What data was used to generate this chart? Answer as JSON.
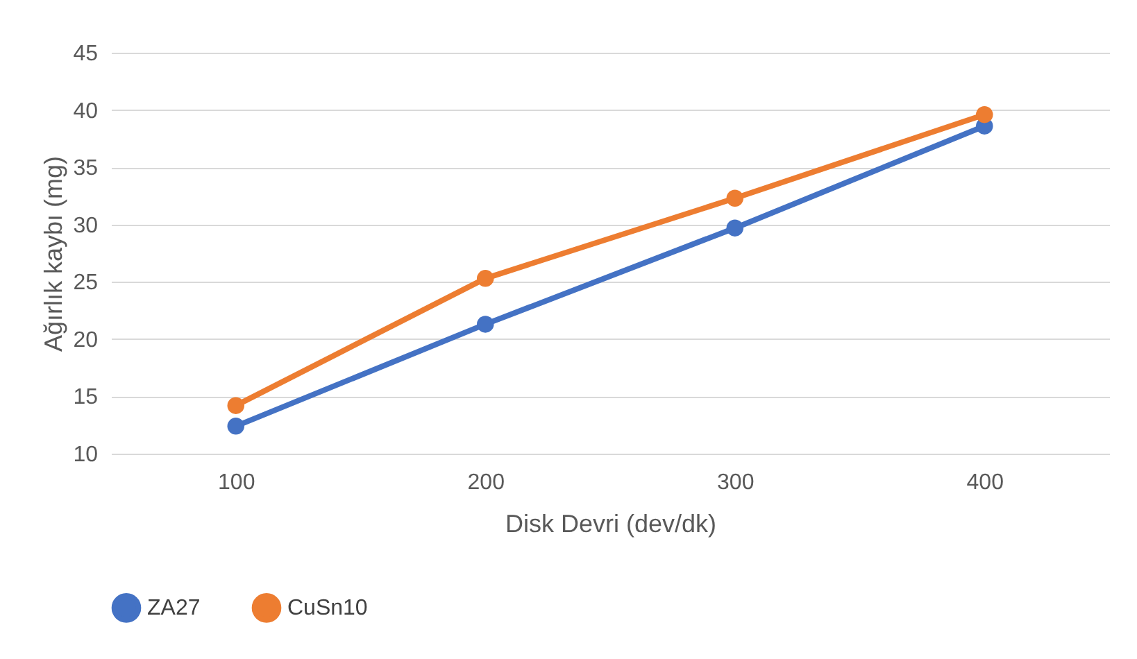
{
  "chart_data": {
    "type": "line",
    "xlabel": "Disk Devri (dev/dk)",
    "ylabel": "Ağırlık kaybı (mg)",
    "categories": [
      "100",
      "200",
      "300",
      "400"
    ],
    "series": [
      {
        "name": "ZA27",
        "color": "#4472c4",
        "values": [
          12.4,
          21.3,
          29.7,
          38.6
        ]
      },
      {
        "name": "CuSn10",
        "color": "#ed7d31",
        "values": [
          14.2,
          25.3,
          32.3,
          39.6
        ]
      }
    ],
    "ylim": [
      10,
      45
    ],
    "yticks": [
      10,
      15,
      20,
      25,
      30,
      35,
      40,
      45
    ],
    "grid": "y",
    "legend": "bottom",
    "marker": "circle",
    "line_style": "solid"
  }
}
